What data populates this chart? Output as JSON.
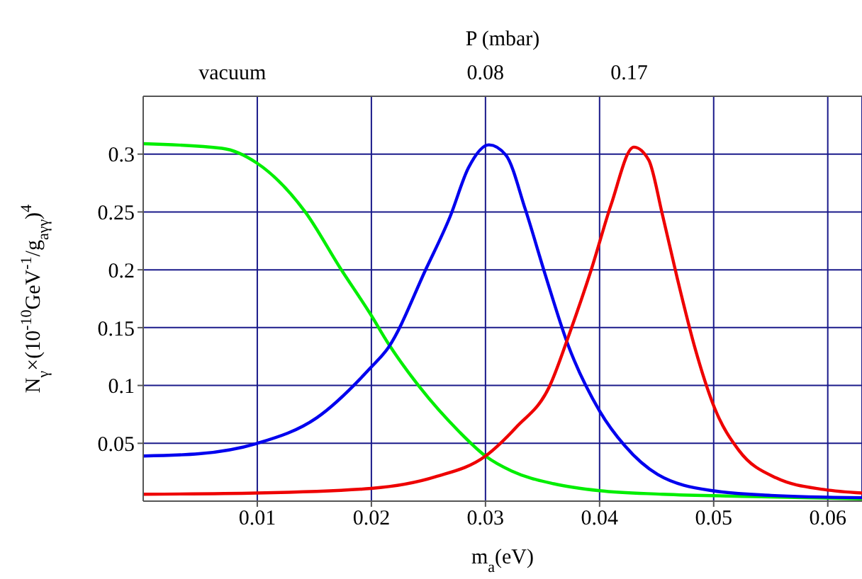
{
  "chart_data": {
    "type": "line",
    "xlabel": "m$_{a}$(eV)",
    "ylabel": "N$_{γ}$×(10$^{-10}$GeV$^{-1}$/g$_{aγγ}$)$^{4}$",
    "annotations": [
      "P (mbar)",
      "vacuum",
      "0.08",
      "0.17"
    ],
    "xlim": [
      0,
      0.063
    ],
    "xticks": [
      0.01,
      0.02,
      0.03,
      0.04,
      0.05,
      0.06
    ],
    "ylim": [
      0,
      0.35
    ],
    "yticks": [
      0.05,
      0.1,
      0.15,
      0.2,
      0.25,
      0.3
    ],
    "grid": true,
    "marker": "none",
    "line_style": "solid",
    "series": [
      {
        "color": "#00ee00",
        "x": [
          0,
          0.0069,
          0.01,
          0.0142,
          0.0173,
          0.0199,
          0.0215,
          0.0242,
          0.0277,
          0.03,
          0.0323,
          0.036,
          0.04,
          0.0455,
          0.0534,
          0.063
        ],
        "values": [
          0.309,
          0.305,
          0.292,
          0.25,
          0.201,
          0.162,
          0.136,
          0.099,
          0.06,
          0.039,
          0.026,
          0.015,
          0.009,
          0.006,
          0.004,
          0.002
        ]
      },
      {
        "color": "#0000ee",
        "x": [
          0,
          0.0049,
          0.01,
          0.0152,
          0.0199,
          0.0215,
          0.0248,
          0.0269,
          0.0285,
          0.0303,
          0.0318,
          0.0335,
          0.0352,
          0.0372,
          0.04,
          0.0422,
          0.0451,
          0.0499,
          0.055,
          0.063
        ],
        "values": [
          0.039,
          0.041,
          0.05,
          0.072,
          0.115,
          0.133,
          0.201,
          0.246,
          0.288,
          0.308,
          0.299,
          0.252,
          0.197,
          0.136,
          0.078,
          0.048,
          0.023,
          0.009,
          0.005,
          0.003
        ]
      },
      {
        "color": "#ee0000",
        "x": [
          0,
          0.01,
          0.02,
          0.0256,
          0.03,
          0.0327,
          0.0356,
          0.0374,
          0.0393,
          0.041,
          0.043,
          0.0443,
          0.0455,
          0.0468,
          0.0484,
          0.0501,
          0.0522,
          0.0555,
          0.0597,
          0.063
        ],
        "values": [
          0.006,
          0.007,
          0.011,
          0.021,
          0.039,
          0.064,
          0.099,
          0.146,
          0.201,
          0.256,
          0.306,
          0.295,
          0.248,
          0.193,
          0.131,
          0.08,
          0.044,
          0.02,
          0.01,
          0.007
        ]
      }
    ]
  }
}
